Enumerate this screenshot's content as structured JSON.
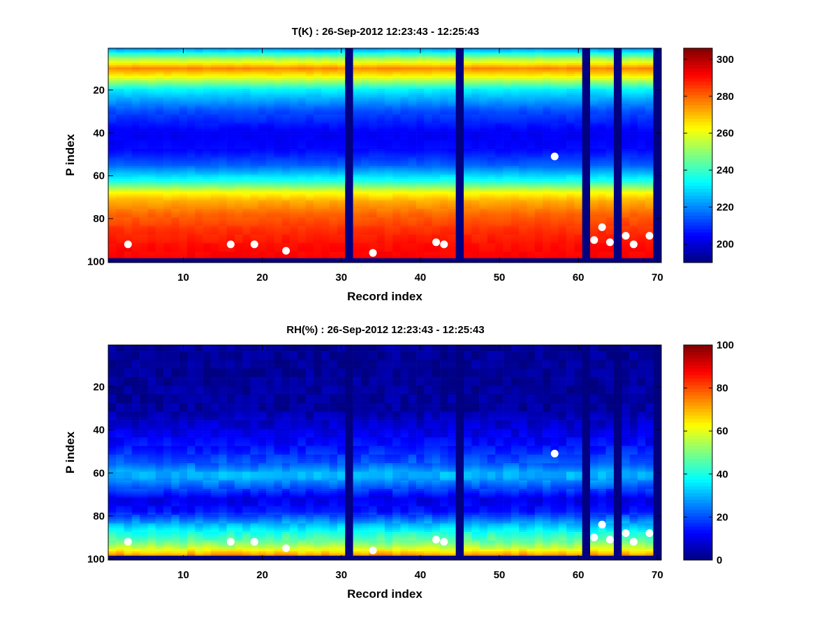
{
  "chart_data": [
    {
      "type": "heatmap",
      "title": "T(K) : 26-Sep-2012 12:23:43 - 12:25:43",
      "xlabel": "Record index",
      "ylabel": "P index",
      "xlim": [
        0.5,
        70.5
      ],
      "ylim": [
        0.5,
        100.5
      ],
      "y_reversed": true,
      "x_ticks": [
        10,
        20,
        30,
        40,
        50,
        60,
        70
      ],
      "y_ticks": [
        20,
        40,
        60,
        80,
        100
      ],
      "colormap": "jet",
      "colorbar": {
        "range": [
          190,
          306
        ],
        "ticks": [
          200,
          220,
          240,
          260,
          280,
          300
        ]
      },
      "no_data_records": [
        31,
        45,
        61,
        65,
        70
      ],
      "no_data_from_level": 99,
      "surface_markers": [
        {
          "x": 3,
          "y": 92
        },
        {
          "x": 16,
          "y": 92
        },
        {
          "x": 19,
          "y": 92
        },
        {
          "x": 23,
          "y": 95
        },
        {
          "x": 34,
          "y": 96
        },
        {
          "x": 42,
          "y": 91
        },
        {
          "x": 43,
          "y": 92
        },
        {
          "x": 57,
          "y": 51
        },
        {
          "x": 62,
          "y": 90
        },
        {
          "x": 63,
          "y": 84
        },
        {
          "x": 64,
          "y": 91
        },
        {
          "x": 66,
          "y": 88
        },
        {
          "x": 67,
          "y": 92
        },
        {
          "x": 69,
          "y": 88
        }
      ],
      "profile": {
        "p_index": [
          1,
          5,
          10,
          14,
          20,
          30,
          40,
          48,
          55,
          62,
          68,
          72,
          78,
          85,
          92,
          98
        ],
        "value": [
          222,
          250,
          276,
          262,
          232,
          213,
          203,
          205,
          215,
          235,
          262,
          272,
          280,
          286,
          290,
          292
        ]
      }
    },
    {
      "type": "heatmap",
      "title": "RH(%) : 26-Sep-2012 12:23:43 - 12:25:43",
      "xlabel": "Record index",
      "ylabel": "P index",
      "xlim": [
        0.5,
        70.5
      ],
      "ylim": [
        0.5,
        100.5
      ],
      "y_reversed": true,
      "x_ticks": [
        10,
        20,
        30,
        40,
        50,
        60,
        70
      ],
      "y_ticks": [
        20,
        40,
        60,
        80,
        100
      ],
      "colormap": "jet",
      "colorbar": {
        "range": [
          0,
          100
        ],
        "ticks": [
          0,
          20,
          40,
          60,
          80,
          100
        ]
      },
      "no_data_records": [
        31,
        45,
        61,
        65,
        70
      ],
      "no_data_from_level": 99,
      "surface_markers": [
        {
          "x": 3,
          "y": 92
        },
        {
          "x": 16,
          "y": 92
        },
        {
          "x": 19,
          "y": 92
        },
        {
          "x": 23,
          "y": 95
        },
        {
          "x": 34,
          "y": 96
        },
        {
          "x": 42,
          "y": 91
        },
        {
          "x": 43,
          "y": 92
        },
        {
          "x": 57,
          "y": 51
        },
        {
          "x": 62,
          "y": 90
        },
        {
          "x": 63,
          "y": 84
        },
        {
          "x": 64,
          "y": 91
        },
        {
          "x": 66,
          "y": 88
        },
        {
          "x": 67,
          "y": 92
        },
        {
          "x": 69,
          "y": 88
        }
      ],
      "profile": {
        "p_index": [
          1,
          30,
          38,
          48,
          56,
          60,
          62,
          66,
          72,
          78,
          83,
          88,
          92,
          95,
          98
        ],
        "value": [
          2,
          3,
          8,
          14,
          22,
          30,
          30,
          22,
          10,
          14,
          28,
          40,
          48,
          58,
          72
        ]
      }
    }
  ]
}
